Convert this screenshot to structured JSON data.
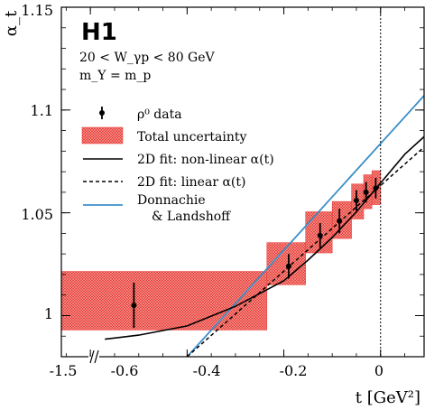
{
  "chart_data": {
    "type": "scatter",
    "title": "",
    "logo": "H1",
    "annotations": [
      "20 < W_γp < 80 GeV",
      "m_Y = m_p"
    ],
    "xlabel": "t [GeV²]",
    "ylabel": "α_t",
    "xlim": [
      -0.66,
      0.09
    ],
    "ylim": [
      0.98,
      1.15
    ],
    "axis_break": true,
    "x_tick_labels": [
      "-1.5",
      "-0.6",
      "-0.4",
      "-0.2",
      "0"
    ],
    "x_ticks": [
      -0.6,
      -0.4,
      -0.2,
      0
    ],
    "y_ticks": [
      1.0,
      1.05,
      1.1,
      1.15
    ],
    "y_tick_labels": [
      "1",
      "1.05",
      "1.1",
      "1.15"
    ],
    "vertical_line_x": 0,
    "legend": {
      "placement": "center-left",
      "entries": [
        {
          "label": "ρ⁰ data",
          "style": "marker"
        },
        {
          "label": "Total uncertainty",
          "style": "band"
        },
        {
          "label": "2D fit: non-linear α(t)",
          "style": "solid"
        },
        {
          "label": "2D fit: linear α(t)",
          "style": "dashed"
        },
        {
          "label": "Donnachie",
          "label2": "& Landshoff",
          "style": "blue"
        }
      ]
    },
    "series": [
      {
        "name": "ρ⁰ data",
        "points": [
          {
            "x": -0.51,
            "y": 1.005,
            "err": 0.011,
            "xlo": -1.5,
            "xhi": -0.235,
            "band_lo": 0.993,
            "band_hi": 1.0215
          },
          {
            "x": -0.19,
            "y": 1.024,
            "err": 0.006,
            "xlo": -0.235,
            "xhi": -0.155,
            "band_lo": 1.015,
            "band_hi": 1.0355
          },
          {
            "x": -0.125,
            "y": 1.039,
            "err": 0.006,
            "xlo": -0.155,
            "xhi": -0.1,
            "band_lo": 1.0305,
            "band_hi": 1.0505
          },
          {
            "x": -0.085,
            "y": 1.046,
            "err": 0.006,
            "xlo": -0.1,
            "xhi": -0.06,
            "band_lo": 1.0375,
            "band_hi": 1.0555
          },
          {
            "x": -0.05,
            "y": 1.056,
            "err": 0.005,
            "xlo": -0.06,
            "xhi": -0.035,
            "band_lo": 1.047,
            "band_hi": 1.064
          },
          {
            "x": -0.03,
            "y": 1.06,
            "err": 0.005,
            "xlo": -0.035,
            "xhi": -0.018,
            "band_lo": 1.052,
            "band_hi": 1.0685
          },
          {
            "x": -0.01,
            "y": 1.062,
            "err": 0.005,
            "xlo": -0.018,
            "xhi": 0.0,
            "band_lo": 1.054,
            "band_hi": 1.0705
          }
        ]
      },
      {
        "name": "2D fit: non-linear α(t)",
        "x": [
          -0.57,
          -0.5,
          -0.4,
          -0.3,
          -0.2,
          -0.15,
          -0.1,
          -0.05,
          0.0,
          0.05,
          0.09
        ],
        "y": [
          0.9885,
          0.9905,
          0.995,
          1.0045,
          1.017,
          1.027,
          1.038,
          1.0505,
          1.0645,
          1.0785,
          1.087
        ]
      },
      {
        "name": "2D fit: linear α(t)",
        "x": [
          -0.4,
          0.09
        ],
        "y": [
          0.98,
          1.082
        ]
      },
      {
        "name": "Donnachie & Landshoff",
        "x": [
          -0.4,
          0.09
        ],
        "y": [
          0.98,
          1.107
        ]
      }
    ]
  }
}
